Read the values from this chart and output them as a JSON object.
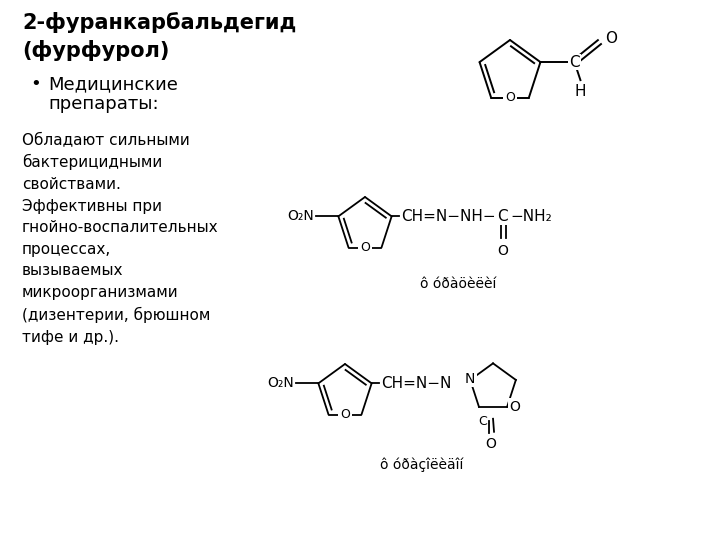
{
  "bg_color": "#ffffff",
  "title_line1": "2-фуранкарбальдегид",
  "title_line2": "(фурфурол)",
  "bullet_text1": "Медицинские",
  "bullet_text2": "препараты:",
  "body_text": "Обладают сильными\nбактерицидными\nсвойствами.\nЭффективны при\nгнойно-воспалительных\nпроцессах,\nвызываемых\nмикроорганизмами\n(дизентерии, брюшном\nтифе и др.).",
  "label1": "ô óðàöèëèí",
  "label2": "ô óðàçîëèäîí",
  "text_color": "#000000",
  "fig_width": 7.2,
  "fig_height": 5.4,
  "dpi": 100
}
